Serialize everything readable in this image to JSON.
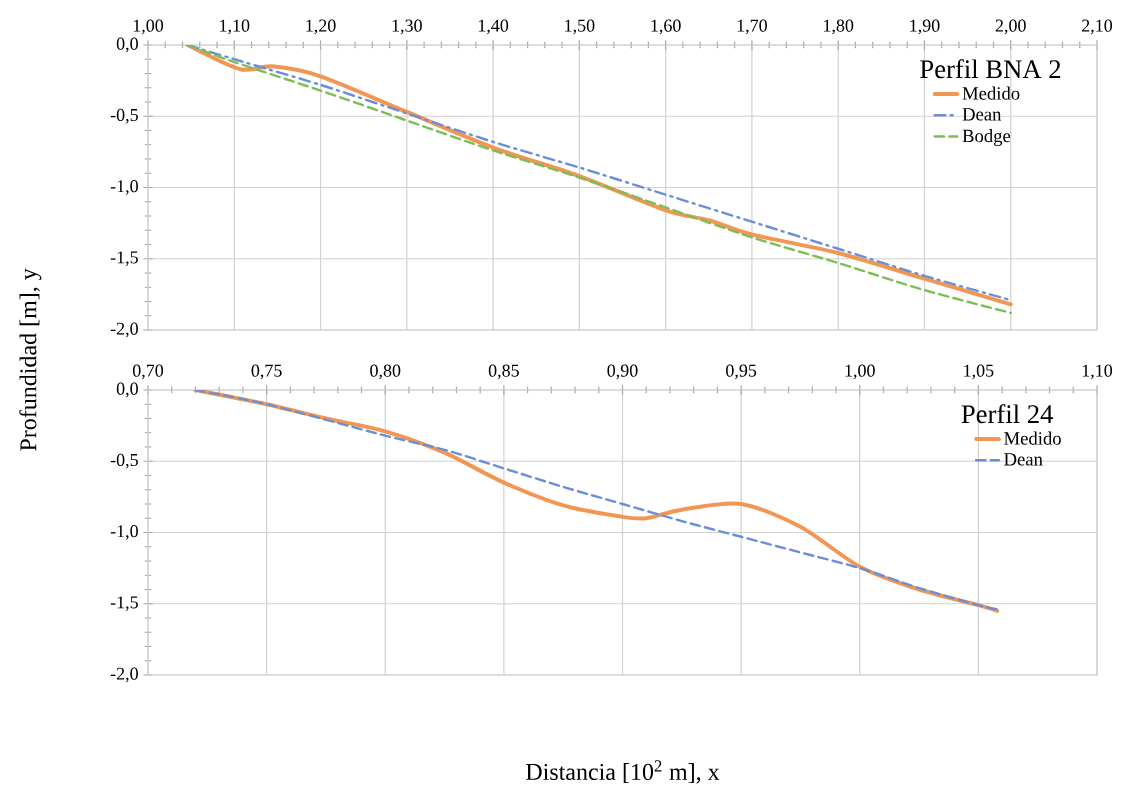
{
  "chart_data": [
    {
      "type": "line",
      "legend_title": "Perfil BNA 2",
      "ylabel": "Profundidad [m], y",
      "grid": true,
      "legend": "top right",
      "xlim": [
        1.0,
        2.1
      ],
      "ylim": [
        -2.0,
        0.0
      ],
      "xticks": [
        {
          "value": 1.0,
          "label": "1,00"
        },
        {
          "value": 1.1,
          "label": "1,10"
        },
        {
          "value": 1.2,
          "label": "1,20"
        },
        {
          "value": 1.3,
          "label": "1,30"
        },
        {
          "value": 1.4,
          "label": "1,40"
        },
        {
          "value": 1.5,
          "label": "1,50"
        },
        {
          "value": 1.6,
          "label": "1,60"
        },
        {
          "value": 1.7,
          "label": "1,70"
        },
        {
          "value": 1.8,
          "label": "1,80"
        },
        {
          "value": 1.9,
          "label": "1,90"
        },
        {
          "value": 2.0,
          "label": "2,00"
        },
        {
          "value": 2.1,
          "label": "2,10"
        }
      ],
      "yticks": [
        {
          "value": 0.0,
          "label": "0,0"
        },
        {
          "value": -0.5,
          "label": "-0,5"
        },
        {
          "value": -1.0,
          "label": "-1,0"
        },
        {
          "value": -1.5,
          "label": "-1,5"
        },
        {
          "value": -2.0,
          "label": "-2,0"
        }
      ],
      "series": [
        {
          "name": "Medido",
          "color": "#f29654",
          "line_style": "solid",
          "x": [
            1.046,
            1.107,
            1.144,
            1.2,
            1.3,
            1.4,
            1.5,
            1.6,
            1.65,
            1.7,
            1.8,
            1.9,
            2.0
          ],
          "values": [
            0.0,
            -0.17,
            -0.15,
            -0.22,
            -0.47,
            -0.72,
            -0.92,
            -1.16,
            -1.23,
            -1.33,
            -1.46,
            -1.64,
            -1.82
          ]
        },
        {
          "name": "Dean",
          "color": "#6a8fd6",
          "line_style": "dashdot",
          "x": [
            1.046,
            1.1,
            1.2,
            1.3,
            1.4,
            1.5,
            1.6,
            1.7,
            1.8,
            1.9,
            2.0
          ],
          "values": [
            0.0,
            -0.1,
            -0.28,
            -0.48,
            -0.68,
            -0.86,
            -1.05,
            -1.24,
            -1.43,
            -1.62,
            -1.79
          ]
        },
        {
          "name": "Bodge",
          "color": "#7ebd55",
          "line_style": "dashed",
          "x": [
            1.046,
            1.1,
            1.2,
            1.3,
            1.4,
            1.5,
            1.6,
            1.7,
            1.8,
            1.9,
            2.0
          ],
          "values": [
            0.0,
            -0.12,
            -0.32,
            -0.53,
            -0.74,
            -0.93,
            -1.14,
            -1.35,
            -1.53,
            -1.72,
            -1.88
          ]
        }
      ]
    },
    {
      "type": "line",
      "legend_title": "Perfil 24",
      "xlabel": "Distancia [10$^{2}$ m], x",
      "grid": true,
      "legend": "top right",
      "xlim": [
        0.7,
        1.1
      ],
      "ylim": [
        -2.0,
        0.0
      ],
      "xticks": [
        {
          "value": 0.7,
          "label": "0,70"
        },
        {
          "value": 0.75,
          "label": "0,75"
        },
        {
          "value": 0.8,
          "label": "0,80"
        },
        {
          "value": 0.85,
          "label": "0,85"
        },
        {
          "value": 0.9,
          "label": "0,90"
        },
        {
          "value": 0.95,
          "label": "0,95"
        },
        {
          "value": 1.0,
          "label": "1,00"
        },
        {
          "value": 1.05,
          "label": "1,05"
        },
        {
          "value": 1.1,
          "label": "1,10"
        }
      ],
      "yticks": [
        {
          "value": 0.0,
          "label": "0,0"
        },
        {
          "value": -0.5,
          "label": "-0,5"
        },
        {
          "value": -1.0,
          "label": "-1,0"
        },
        {
          "value": -1.5,
          "label": "-1,5"
        },
        {
          "value": -2.0,
          "label": "-2,0"
        }
      ],
      "series": [
        {
          "name": "Medido",
          "color": "#f29654",
          "line_style": "solid",
          "x": [
            0.72,
            0.75,
            0.775,
            0.8,
            0.825,
            0.85,
            0.875,
            0.9,
            0.91,
            0.925,
            0.95,
            0.975,
            1.0,
            1.025,
            1.05,
            1.058
          ],
          "values": [
            0.0,
            -0.1,
            -0.2,
            -0.29,
            -0.44,
            -0.65,
            -0.81,
            -0.89,
            -0.9,
            -0.84,
            -0.8,
            -0.96,
            -1.24,
            -1.4,
            -1.51,
            -1.55
          ]
        },
        {
          "name": "Dean",
          "color": "#6a8fd6",
          "line_style": "dashed",
          "x": [
            0.72,
            0.75,
            0.8,
            0.825,
            0.85,
            0.875,
            0.9,
            0.925,
            0.95,
            0.975,
            1.0,
            1.025,
            1.05,
            1.058
          ],
          "values": [
            0.0,
            -0.1,
            -0.32,
            -0.42,
            -0.55,
            -0.68,
            -0.8,
            -0.92,
            -1.03,
            -1.14,
            -1.25,
            -1.39,
            -1.51,
            -1.54
          ]
        }
      ]
    }
  ]
}
